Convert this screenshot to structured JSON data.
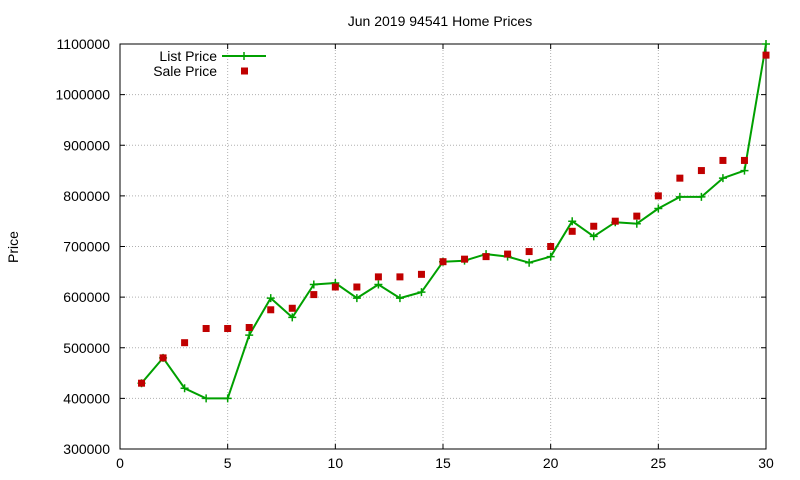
{
  "chart_data": {
    "type": "line",
    "title": "Jun 2019 94541 Home Prices",
    "xlabel": "",
    "ylabel": "Price",
    "xlim": [
      0,
      30
    ],
    "ylim": [
      300000,
      1100000
    ],
    "xticks": [
      0,
      5,
      10,
      15,
      20,
      25,
      30
    ],
    "yticks": [
      300000,
      400000,
      500000,
      600000,
      700000,
      800000,
      900000,
      1000000,
      1100000
    ],
    "grid": true,
    "legend_position": "top-left",
    "series": [
      {
        "name": "List Price",
        "style": "line-plus",
        "color": "#00a000",
        "x": [
          1,
          2,
          3,
          4,
          5,
          6,
          7,
          8,
          9,
          10,
          11,
          12,
          13,
          14,
          15,
          16,
          17,
          18,
          19,
          20,
          21,
          22,
          23,
          24,
          25,
          26,
          27,
          28,
          29,
          30
        ],
        "values": [
          430000,
          480000,
          420000,
          400000,
          400000,
          525000,
          598000,
          560000,
          625000,
          628000,
          598000,
          625000,
          598000,
          610000,
          670000,
          672000,
          685000,
          680000,
          668000,
          680000,
          750000,
          720000,
          748000,
          745000,
          775000,
          798000,
          798000,
          835000,
          850000,
          1100000
        ]
      },
      {
        "name": "Sale Price",
        "style": "square-markers",
        "color": "#c00000",
        "x": [
          1,
          2,
          3,
          4,
          5,
          6,
          7,
          8,
          9,
          10,
          11,
          12,
          13,
          14,
          15,
          16,
          17,
          18,
          19,
          20,
          21,
          22,
          23,
          24,
          25,
          26,
          27,
          28,
          29,
          30
        ],
        "values": [
          430000,
          480000,
          510000,
          538000,
          538000,
          540000,
          575000,
          578000,
          605000,
          620000,
          620000,
          640000,
          640000,
          645000,
          670000,
          675000,
          680000,
          685000,
          690000,
          700000,
          730000,
          740000,
          750000,
          760000,
          800000,
          835000,
          850000,
          870000,
          870000,
          1078000
        ]
      }
    ]
  }
}
